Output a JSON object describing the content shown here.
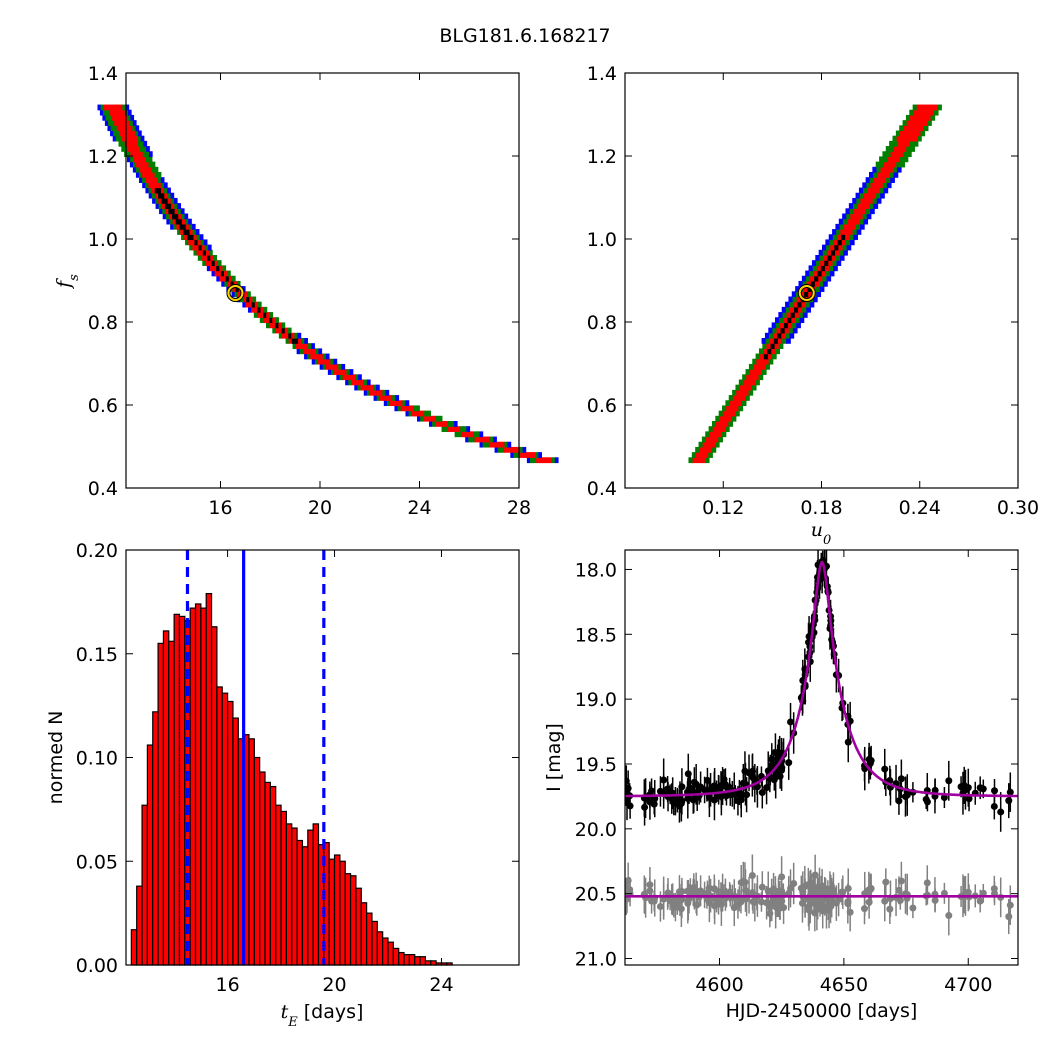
{
  "figure_title": "BLG181.6.168217",
  "chart_data": [
    {
      "type": "heatmap",
      "xlabel": "",
      "ylabel": "f_s",
      "xlim": [
        12.2,
        28
      ],
      "ylim": [
        0.4,
        1.4
      ],
      "xticks": [
        16,
        20,
        24,
        28
      ],
      "yticks": [
        0.4,
        0.6,
        0.8,
        1.0,
        1.2,
        1.4
      ],
      "yticklabels": [
        "0.4",
        "0.6",
        "0.8",
        "1.0",
        "1.2",
        "1.4"
      ],
      "confidence_bands": [
        {
          "level": "outer",
          "color": "#0000ff"
        },
        {
          "level": "middle",
          "color": "#008000"
        },
        {
          "level": "inner",
          "color": "#ff0000"
        },
        {
          "level": "core",
          "color": "#000000"
        }
      ],
      "best_fit": {
        "x": 16.6,
        "y": 0.87,
        "color": "#ffd700"
      }
    },
    {
      "type": "heatmap",
      "xlabel": "u_0",
      "ylabel": "",
      "xlim": [
        0.06,
        0.3
      ],
      "ylim": [
        0.4,
        1.4
      ],
      "xticks": [
        0.12,
        0.18,
        0.24,
        0.3
      ],
      "xticklabels": [
        "0.12",
        "0.18",
        "0.24",
        "0.30"
      ],
      "yticks": [
        0.4,
        0.6,
        0.8,
        1.0,
        1.2,
        1.4
      ],
      "yticklabels": [
        "0.4",
        "0.6",
        "0.8",
        "1.0",
        "1.2",
        "1.4"
      ],
      "best_fit": {
        "x": 0.171,
        "y": 0.87,
        "color": "#ffd700"
      }
    },
    {
      "type": "bar",
      "xlabel": "t_E [days]",
      "ylabel": "normed N",
      "xlim": [
        12.2,
        26.9
      ],
      "ylim": [
        0,
        0.2
      ],
      "xticks": [
        16,
        20,
        24
      ],
      "yticks": [
        0,
        0.05,
        0.1,
        0.15,
        0.2
      ],
      "yticklabels": [
        "0.00",
        "0.05",
        "0.10",
        "0.15",
        "0.20"
      ],
      "bin_start": 12.4,
      "bin_width": 0.2,
      "values": [
        0.017,
        0.038,
        0.077,
        0.106,
        0.122,
        0.155,
        0.161,
        0.156,
        0.169,
        0.168,
        0.166,
        0.172,
        0.174,
        0.172,
        0.179,
        0.163,
        0.134,
        0.131,
        0.127,
        0.119,
        0.109,
        0.111,
        0.109,
        0.1,
        0.093,
        0.088,
        0.086,
        0.077,
        0.074,
        0.068,
        0.066,
        0.06,
        0.057,
        0.065,
        0.068,
        0.058,
        0.059,
        0.051,
        0.053,
        0.05,
        0.044,
        0.043,
        0.037,
        0.03,
        0.025,
        0.021,
        0.016,
        0.013,
        0.011,
        0.008,
        0.006,
        0.005,
        0.005,
        0.004,
        0.004,
        0.002,
        0.002,
        0.001,
        0.001,
        0.001,
        0.0
      ],
      "bar_color": "#ff0000",
      "median": 16.6,
      "lower": 14.5,
      "upper": 19.6,
      "line_color": "#0000ff"
    },
    {
      "type": "scatter",
      "xlabel": "HJD-2450000 [days]",
      "ylabel": "I [mag]",
      "xlim": [
        4562,
        4720
      ],
      "ylim": [
        21.05,
        17.85
      ],
      "xticks": [
        4600,
        4650,
        4700
      ],
      "yticks": [
        18.0,
        18.5,
        19.0,
        19.5,
        20.0,
        20.5,
        21.0
      ],
      "yticklabels": [
        "18.0",
        "18.5",
        "19.0",
        "19.5",
        "20.0",
        "20.5",
        "21.0"
      ],
      "model": {
        "t0": 4641.2,
        "tE": 16.6,
        "u0": 0.171,
        "fs": 0.87,
        "base_mag": 19.75,
        "color": "#a000a0"
      },
      "residual_baseline": 20.52,
      "data_color": "#000000",
      "residual_color": "#808080"
    }
  ]
}
